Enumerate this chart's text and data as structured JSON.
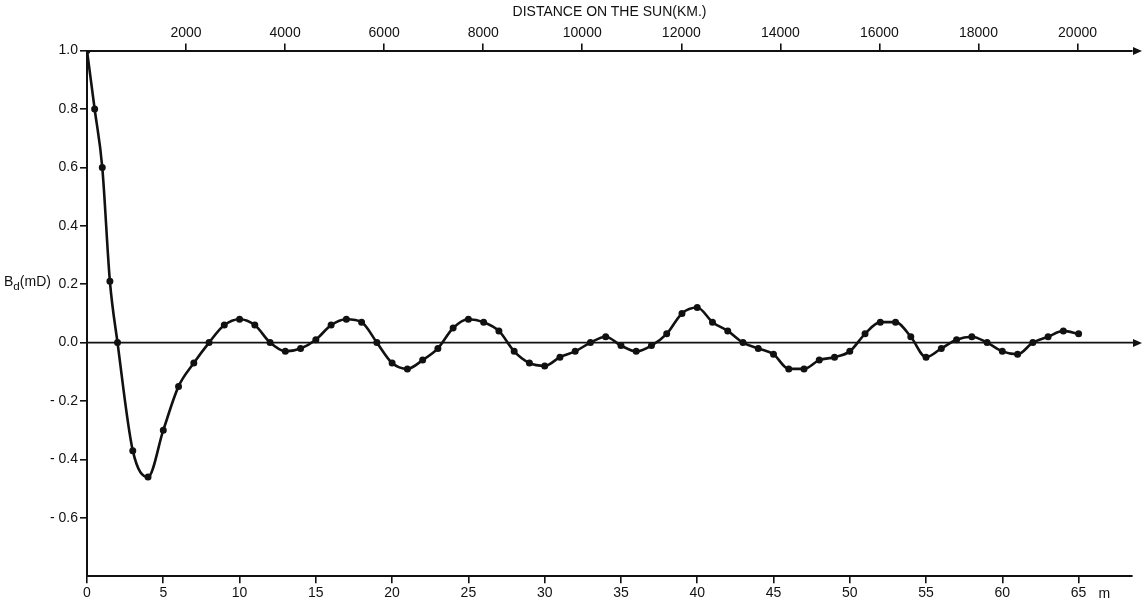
{
  "chart_data": {
    "type": "line",
    "x2label": "DISTANCE ON THE SUN(KM.)",
    "xlabel": "m",
    "ylabel": "B$_{d}$(mD)",
    "series": [
      {
        "color": "#111111",
        "x": [
          0,
          0.5,
          1,
          1.5,
          2,
          3,
          4,
          5,
          6,
          7,
          8,
          9,
          10,
          11,
          12,
          13,
          14,
          15,
          16,
          17,
          18,
          19,
          20,
          21,
          22,
          23,
          24,
          25,
          26,
          27,
          28,
          29,
          30,
          31,
          32,
          33,
          34,
          35,
          36,
          37,
          38,
          39,
          40,
          41,
          42,
          43,
          44,
          45,
          46,
          47,
          48,
          49,
          50,
          51,
          52,
          53,
          54,
          55,
          56,
          57,
          58,
          59,
          60,
          61,
          62,
          63,
          64,
          65
        ],
        "values": [
          1.0,
          0.8,
          0.6,
          0.21,
          0.0,
          -0.37,
          -0.46,
          -0.3,
          -0.15,
          -0.07,
          0.0,
          0.06,
          0.08,
          0.06,
          0.0,
          -0.03,
          -0.02,
          0.01,
          0.06,
          0.08,
          0.07,
          0.0,
          -0.07,
          -0.09,
          -0.06,
          -0.02,
          0.05,
          0.08,
          0.07,
          0.04,
          -0.03,
          -0.07,
          -0.08,
          -0.05,
          -0.03,
          0.0,
          0.02,
          -0.01,
          -0.03,
          -0.01,
          0.03,
          0.1,
          0.12,
          0.07,
          0.04,
          0.0,
          -0.02,
          -0.04,
          -0.09,
          -0.09,
          -0.06,
          -0.05,
          -0.03,
          0.03,
          0.07,
          0.07,
          0.02,
          -0.05,
          -0.02,
          0.01,
          0.02,
          0.0,
          -0.03,
          -0.04,
          0.0,
          0.02,
          0.04,
          0.03
        ]
      }
    ],
    "xlim": [
      0,
      68.5
    ],
    "xticks": [
      {
        "value": 0,
        "label": "0"
      },
      5,
      10,
      15,
      20,
      25,
      30,
      35,
      40,
      45,
      50,
      55,
      60,
      65
    ],
    "x2lim": [
      0,
      21100
    ],
    "x2ticks": [
      2000,
      4000,
      6000,
      8000,
      10000,
      12000,
      14000,
      16000,
      18000,
      20000
    ],
    "ylim": [
      -0.8,
      1.0
    ],
    "yticks": [
      {
        "value": -0.6,
        "label": "- 0.6"
      },
      {
        "value": -0.4,
        "label": "- 0.4"
      },
      {
        "value": -0.2,
        "label": "- 0.2"
      },
      {
        "value": 0,
        "label": "0.0"
      },
      {
        "value": 0.2,
        "label": "0.2"
      },
      {
        "value": 0.4,
        "label": "0.4"
      },
      {
        "value": 0.6,
        "label": "0.6"
      },
      {
        "value": 0.8,
        "label": "0.8"
      },
      {
        "value": 1.0,
        "label": "1.0"
      }
    ],
    "ref_lines": [
      {
        "axis": "y",
        "value": 0,
        "color": "#111111"
      }
    ],
    "marker": "circle",
    "line_style": "solid",
    "grid": false,
    "legend": false
  }
}
